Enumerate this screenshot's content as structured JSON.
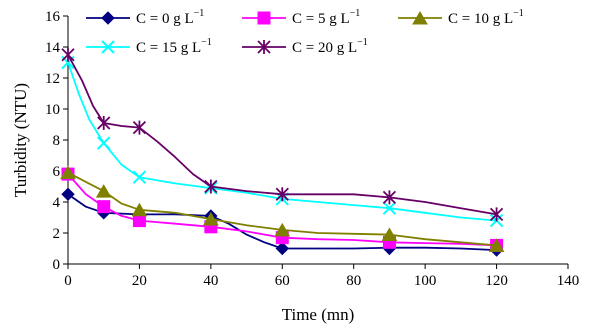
{
  "chart_data": {
    "type": "line",
    "title": "",
    "xlabel": "Time (mn)",
    "ylabel": "Turbidity (NTU)",
    "xlim": [
      0,
      140
    ],
    "ylim": [
      0,
      16
    ],
    "xticks": [
      0,
      20,
      40,
      60,
      80,
      100,
      120,
      140
    ],
    "yticks": [
      0,
      2,
      4,
      6,
      8,
      10,
      12,
      14,
      16
    ],
    "grid": false,
    "legend_position": "top",
    "series": [
      {
        "name": "C = 0 g L",
        "superscript": "−1",
        "color": "#000080",
        "marker": "diamond",
        "x": [
          0,
          10,
          20,
          40,
          60,
          90,
          120
        ],
        "y": [
          4.5,
          3.3,
          3.2,
          3.1,
          1.0,
          1.0,
          0.9
        ],
        "curve_x": [
          0,
          5,
          10,
          15,
          20,
          30,
          40,
          45,
          50,
          55,
          60,
          70,
          80,
          90,
          100,
          110,
          120
        ],
        "curve_y": [
          4.5,
          3.7,
          3.3,
          3.25,
          3.2,
          3.2,
          3.1,
          2.6,
          1.9,
          1.4,
          1.0,
          1.0,
          1.0,
          1.05,
          1.05,
          1.0,
          0.9
        ]
      },
      {
        "name": "C = 5 g L",
        "superscript": "−1",
        "color": "#ff00ff",
        "marker": "square",
        "x": [
          0,
          10,
          20,
          40,
          60,
          90,
          120
        ],
        "y": [
          5.8,
          3.7,
          2.8,
          2.4,
          1.7,
          1.4,
          1.2
        ],
        "curve_x": [
          0,
          5,
          10,
          15,
          20,
          30,
          40,
          50,
          60,
          70,
          80,
          90,
          100,
          110,
          120
        ],
        "curve_y": [
          5.8,
          4.5,
          3.7,
          3.1,
          2.8,
          2.6,
          2.4,
          2.1,
          1.7,
          1.6,
          1.55,
          1.4,
          1.35,
          1.3,
          1.2
        ]
      },
      {
        "name": "C = 10 g L",
        "superscript": "−1",
        "color": "#808000",
        "marker": "triangle",
        "x": [
          0,
          10,
          20,
          40,
          60,
          90,
          120
        ],
        "y": [
          5.9,
          4.7,
          3.5,
          2.9,
          2.2,
          1.9,
          1.2
        ],
        "curve_x": [
          0,
          5,
          10,
          15,
          20,
          30,
          40,
          50,
          60,
          70,
          80,
          90,
          100,
          110,
          120
        ],
        "curve_y": [
          5.9,
          5.3,
          4.7,
          3.9,
          3.5,
          3.3,
          2.9,
          2.5,
          2.2,
          2.0,
          1.95,
          1.9,
          1.6,
          1.4,
          1.2
        ]
      },
      {
        "name": "C = 15 g L",
        "superscript": "−1",
        "color": "#00ffff",
        "marker": "x",
        "x": [
          0,
          10,
          20,
          40,
          60,
          90,
          120
        ],
        "y": [
          13.0,
          7.8,
          5.6,
          4.9,
          4.2,
          3.6,
          2.8
        ],
        "curve_x": [
          0,
          3,
          6,
          10,
          15,
          20,
          30,
          40,
          50,
          60,
          70,
          80,
          90,
          100,
          110,
          120
        ],
        "curve_y": [
          13.0,
          11.0,
          9.3,
          7.8,
          6.4,
          5.6,
          5.2,
          4.9,
          4.6,
          4.2,
          4.0,
          3.8,
          3.6,
          3.3,
          3.0,
          2.8
        ]
      },
      {
        "name": "C = 20 g L",
        "superscript": "−1",
        "color": "#660066",
        "marker": "star",
        "x": [
          0,
          10,
          20,
          40,
          60,
          90,
          120
        ],
        "y": [
          13.5,
          9.1,
          8.8,
          5.0,
          4.5,
          4.3,
          3.2
        ],
        "curve_x": [
          0,
          4,
          7,
          10,
          15,
          20,
          25,
          30,
          35,
          40,
          50,
          60,
          70,
          80,
          90,
          100,
          110,
          120
        ],
        "curve_y": [
          13.5,
          11.8,
          10.2,
          9.1,
          8.9,
          8.8,
          7.9,
          6.9,
          5.8,
          5.0,
          4.7,
          4.5,
          4.5,
          4.5,
          4.3,
          4.0,
          3.6,
          3.2
        ]
      }
    ]
  }
}
